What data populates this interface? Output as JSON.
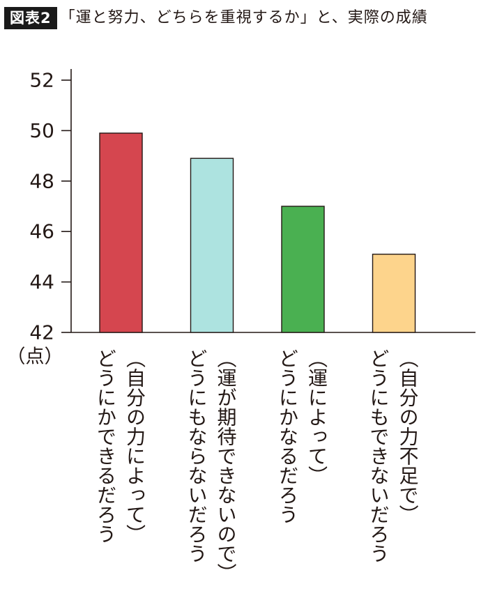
{
  "header": {
    "tag": "図表2",
    "title": "「運と努力、どちらを重視するか」と、実際の成績"
  },
  "chart_data": {
    "type": "bar",
    "title": "「運と努力、どちらを重視するか」と、実際の成績",
    "ylabel": "（点）",
    "xlabel": "",
    "ylim": [
      42,
      52
    ],
    "yticks": [
      42,
      44,
      46,
      48,
      50,
      52
    ],
    "grid": false,
    "categories": [
      [
        "（自分の力によって）",
        "どうにかできるだろう"
      ],
      [
        "（運が期待できないので）",
        "どうにもならないだろう"
      ],
      [
        "（運によって）",
        "どうにかなるだろう"
      ],
      [
        "（自分の力不足で）",
        "どうにもできないだろう"
      ]
    ],
    "values": [
      49.9,
      48.9,
      47.0,
      45.1
    ],
    "colors": [
      "#d5464f",
      "#ade3e0",
      "#4ab051",
      "#fdd48c"
    ]
  }
}
